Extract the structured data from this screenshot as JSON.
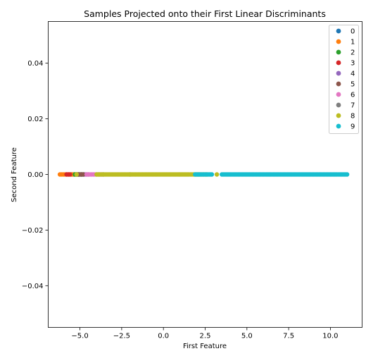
{
  "chart_data": {
    "type": "scatter",
    "title": "Samples Projected onto their First Linear Discriminants",
    "xlabel": "First Feature",
    "ylabel": "Second Feature",
    "xlim": [
      -6.9,
      11.9
    ],
    "ylim": [
      -0.055,
      0.055
    ],
    "xticks": [
      -5.0,
      -2.5,
      0.0,
      2.5,
      5.0,
      7.5,
      10.0
    ],
    "xtick_labels": [
      "−5.0",
      "−2.5",
      "0.0",
      "2.5",
      "5.0",
      "7.5",
      "10.0"
    ],
    "yticks": [
      -0.04,
      -0.02,
      0.0,
      0.02,
      0.04
    ],
    "ytick_labels": [
      "−0.04",
      "−0.02",
      "0.00",
      "0.02",
      "0.04"
    ],
    "grid": false,
    "legend_position": "top-right",
    "series": [
      {
        "name": "0",
        "color": "#1f77b4",
        "x": [
          -5.5,
          -5.2,
          -4.9
        ],
        "y": [
          0,
          0,
          0
        ]
      },
      {
        "name": "1",
        "color": "#ff7f0e",
        "x": [
          -6.2,
          -6.0,
          -5.8,
          -5.6,
          -5.4,
          -5.1
        ],
        "y": [
          0,
          0,
          0,
          0,
          0,
          0
        ]
      },
      {
        "name": "2",
        "color": "#2ca02c",
        "x": [
          -5.3,
          -5.0,
          -4.8
        ],
        "y": [
          0,
          0,
          0
        ]
      },
      {
        "name": "3",
        "color": "#d62728",
        "x": [
          -5.8,
          -5.6
        ],
        "y": [
          0,
          0
        ]
      },
      {
        "name": "4",
        "color": "#9467bd",
        "x": [
          -4.9,
          -4.7,
          -4.5
        ],
        "y": [
          0,
          0,
          0
        ]
      },
      {
        "name": "5",
        "color": "#8c564b",
        "x": [
          -5.1,
          -4.8
        ],
        "y": [
          0,
          0
        ]
      },
      {
        "name": "6",
        "color": "#e377c2",
        "x": [
          -4.6,
          -4.3,
          -4.1,
          -3.9,
          -3.7
        ],
        "y": [
          0,
          0,
          0,
          0,
          0
        ]
      },
      {
        "name": "7",
        "color": "#7f7f7f",
        "x": [
          -3.6,
          -2.0
        ],
        "y": [
          0,
          0
        ]
      },
      {
        "name": "8",
        "color": "#bcbd22",
        "x": [
          -5.2,
          -4.0,
          -3.5,
          -3.0,
          -2.5,
          -2.0,
          -1.5,
          -1.0,
          -0.5,
          0.0,
          0.5,
          1.0,
          1.5,
          1.8,
          2.2,
          2.6,
          3.2
        ],
        "y": [
          0,
          0,
          0,
          0,
          0,
          0,
          0,
          0,
          0,
          0,
          0,
          0,
          0,
          0,
          0,
          0,
          0
        ]
      },
      {
        "name": "9",
        "color": "#17becf",
        "x": [
          1.9,
          2.4,
          2.9,
          3.5,
          4.0,
          4.5,
          5.0,
          5.5,
          6.0,
          6.5,
          7.0,
          7.5,
          8.0,
          8.5,
          9.0,
          9.5,
          10.0,
          10.4,
          10.5,
          11.0
        ],
        "y": [
          0,
          0,
          0,
          0,
          0,
          0,
          0,
          0,
          0,
          0,
          0,
          0,
          0,
          0,
          0,
          0,
          0,
          0,
          0,
          0
        ]
      }
    ]
  }
}
